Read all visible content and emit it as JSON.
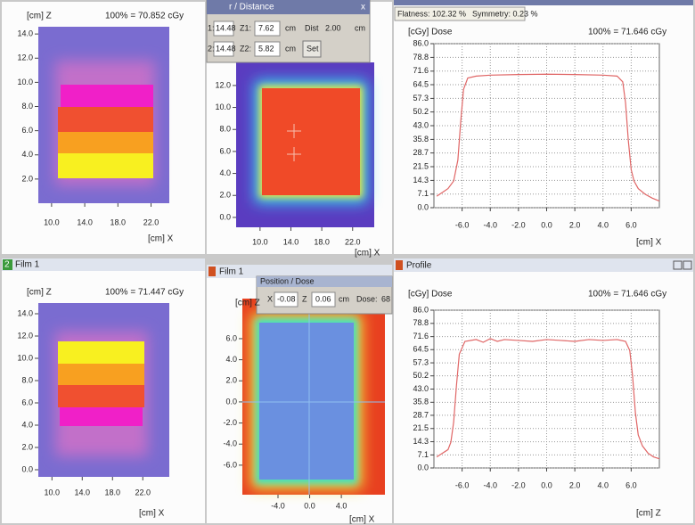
{
  "panels": [
    {
      "z_label": "[cm] Z",
      "norm": "100% = 70.852 cGy",
      "x_label": "[cm] X",
      "xlim": [
        8.4,
        24.2
      ],
      "ylim": [
        0,
        14.6
      ],
      "xticks": [
        {
          "value": 10,
          "label": "10.0"
        },
        {
          "value": 14,
          "label": "14.0"
        },
        {
          "value": 18,
          "label": "18.0"
        },
        {
          "value": 22,
          "label": "22.0"
        }
      ],
      "yticks": [
        {
          "value": 14,
          "label": "14.0"
        },
        {
          "value": 12,
          "label": "12.0"
        },
        {
          "value": 10,
          "label": "10.0"
        },
        {
          "value": 8,
          "label": "8.0"
        },
        {
          "value": 6,
          "label": "6.0"
        },
        {
          "value": 4,
          "label": "4.0"
        },
        {
          "value": 2,
          "label": "2.0"
        }
      ]
    },
    {
      "window": {
        "title": "r / Distance",
        "close": "x",
        "row1": [
          "1:",
          "14.48",
          "Z1:",
          "7.62",
          "cm",
          "Dist",
          "2.00",
          "cm"
        ],
        "row2": [
          "2:",
          "14.48",
          "Z2:",
          "5.82",
          "cm"
        ],
        "button": "Set"
      },
      "x_label": "[cm] X",
      "xlim": [
        6.9,
        24.8
      ],
      "ylim": [
        -0.9,
        14.1
      ],
      "xticks": [
        {
          "value": 10,
          "label": "10.0"
        },
        {
          "value": 14,
          "label": "14.0"
        },
        {
          "value": 18,
          "label": "18.0"
        },
        {
          "value": 22,
          "label": "22.0"
        }
      ],
      "yticks": [
        {
          "value": 12,
          "label": "12.0"
        },
        {
          "value": 10,
          "label": "10.0"
        },
        {
          "value": 8,
          "label": "8.0"
        },
        {
          "value": 6,
          "label": "6.0"
        },
        {
          "value": 4,
          "label": "4.0"
        },
        {
          "value": 2,
          "label": "2.0"
        },
        {
          "value": 0,
          "label": "0.0"
        }
      ]
    },
    {
      "flatness": "Flatness: 102.32 %",
      "symmetry": "Symmetry: 0.23 %",
      "y_label": "[cGy] Dose",
      "norm": "100% = 71.646 cGy",
      "x_label": "[cm] X",
      "chart": {
        "type": "line",
        "color": "#e06666",
        "grid": true,
        "x": [
          -7.8,
          -7.4,
          -7.0,
          -6.6,
          -6.3,
          -6.1,
          -5.9,
          -5.6,
          -5.0,
          -4.0,
          -2.0,
          0,
          2.0,
          4.0,
          5.0,
          5.4,
          5.6,
          5.8,
          6.0,
          6.2,
          6.5,
          7.0,
          7.5,
          8.0
        ],
        "values": [
          6,
          8,
          10,
          14,
          25,
          45,
          62,
          68,
          69,
          69.5,
          69.8,
          70,
          69.8,
          69.5,
          69,
          66,
          55,
          35,
          20,
          14,
          10,
          7,
          5,
          3.5
        ]
      },
      "xlim": [
        -8,
        8
      ],
      "ylim": [
        0,
        86
      ],
      "xticks": [
        {
          "value": -6,
          "label": "-6.0"
        },
        {
          "value": -4,
          "label": "-4.0"
        },
        {
          "value": -2,
          "label": "-2.0"
        },
        {
          "value": 0,
          "label": "0.0"
        },
        {
          "value": 2,
          "label": "2.0"
        },
        {
          "value": 4,
          "label": "4.0"
        },
        {
          "value": 6,
          "label": "6.0"
        }
      ],
      "yticks": [
        {
          "value": 86,
          "label": "86.0"
        },
        78.8,
        71.6,
        64.5,
        57.3,
        50.2,
        {
          "value": 43,
          "label": "43.0"
        },
        35.8,
        28.7,
        21.5,
        14.3,
        7.1,
        {
          "value": 0,
          "label": "0.0"
        }
      ]
    },
    {
      "header_num": "2",
      "header": "Film 1",
      "z_label": "[cm] Z",
      "norm": "100% = 71.447 cGy",
      "x_label": "[cm] X",
      "xlim": [
        8.2,
        25.5
      ],
      "ylim": [
        -0.64,
        14.96
      ],
      "xticks": [
        {
          "value": 10,
          "label": "10.0"
        },
        {
          "value": 14,
          "label": "14.0"
        },
        {
          "value": 18,
          "label": "18.0"
        },
        {
          "value": 22,
          "label": "22.0"
        }
      ],
      "yticks": [
        {
          "value": 14,
          "label": "14.0"
        },
        {
          "value": 12,
          "label": "12.0"
        },
        {
          "value": 10,
          "label": "10.0"
        },
        {
          "value": 8,
          "label": "8.0"
        },
        {
          "value": 6,
          "label": "6.0"
        },
        {
          "value": 4,
          "label": "4.0"
        },
        {
          "value": 2,
          "label": "2.0"
        },
        {
          "value": 0,
          "label": "0.0"
        }
      ]
    },
    {
      "header": "Film 1",
      "window": {
        "title": "Position / Dose",
        "fields": [
          "X",
          "-0.08",
          "Z",
          "0.06",
          "cm",
          "Dose:",
          "68"
        ]
      },
      "z_label": "[cm] Z",
      "x_label": "[cm] X",
      "xlim": [
        -8.5,
        9.5
      ],
      "ylim": [
        -8.8,
        9.8
      ],
      "xticks": [
        {
          "value": -4,
          "label": "-4.0"
        },
        {
          "value": 0,
          "label": "0.0"
        },
        {
          "value": 4,
          "label": "4.0"
        }
      ],
      "yticks": [
        {
          "value": 6,
          "label": "6.0"
        },
        {
          "value": 4,
          "label": "4.0"
        },
        {
          "value": 2,
          "label": "2.0"
        },
        {
          "value": 0,
          "label": "0.0"
        },
        {
          "value": -2,
          "label": "-2.0"
        },
        {
          "value": -4,
          "label": "-4.0"
        },
        {
          "value": -6,
          "label": "-6.0"
        }
      ]
    },
    {
      "header": "Profile",
      "y_label": "[cGy] Dose",
      "norm": "100% = 71.646 cGy",
      "x_label": "[cm] Z",
      "chart": {
        "type": "line",
        "color": "#e06666",
        "grid": true,
        "x": [
          -7.8,
          -7.4,
          -7.0,
          -6.8,
          -6.6,
          -6.4,
          -6.2,
          -5.8,
          -5.0,
          -4.5,
          -4.0,
          -3.5,
          -3.0,
          -2.0,
          -1.0,
          0,
          1.0,
          2.0,
          3.0,
          4.0,
          5.0,
          5.6,
          5.9,
          6.1,
          6.3,
          6.5,
          6.8,
          7.2,
          7.6,
          8.0
        ],
        "values": [
          6,
          8,
          10,
          14,
          25,
          45,
          62,
          69,
          70,
          68.5,
          70.5,
          69,
          70,
          69.5,
          69,
          70,
          69.5,
          69,
          70,
          69.5,
          70,
          69,
          64,
          50,
          30,
          18,
          12,
          8,
          6,
          5
        ]
      },
      "xlim": [
        -8,
        8
      ],
      "ylim": [
        0,
        86
      ],
      "xticks": [
        {
          "value": -6,
          "label": "-6.0"
        },
        {
          "value": -4,
          "label": "-4.0"
        },
        {
          "value": -2,
          "label": "-2.0"
        },
        {
          "value": 0,
          "label": "0.0"
        },
        {
          "value": 2,
          "label": "2.0"
        },
        {
          "value": 4,
          "label": "4.0"
        },
        {
          "value": 6,
          "label": "6.0"
        }
      ],
      "yticks": [
        {
          "value": 86,
          "label": "86.0"
        },
        78.8,
        71.6,
        64.5,
        57.3,
        50.2,
        {
          "value": 43,
          "label": "43.0"
        },
        35.8,
        28.7,
        21.5,
        14.3,
        7.1,
        {
          "value": 0,
          "label": "0.0"
        }
      ]
    }
  ]
}
